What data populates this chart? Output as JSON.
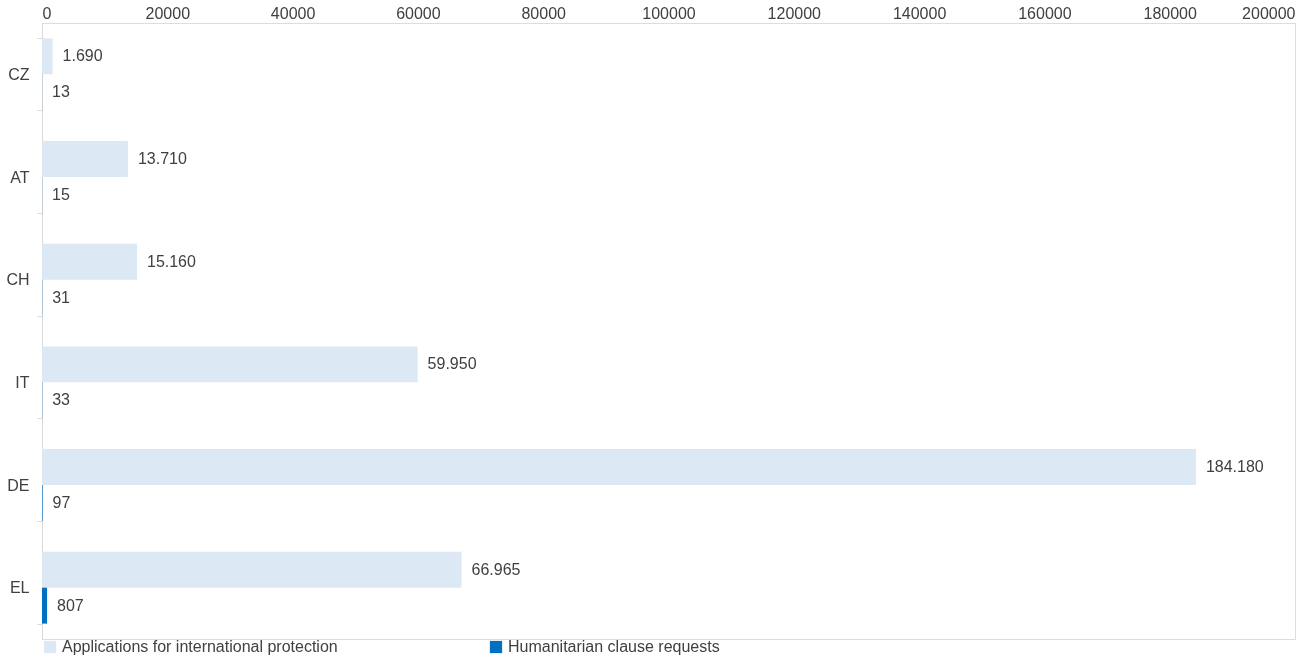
{
  "chart_data": {
    "type": "bar",
    "orientation": "horizontal",
    "categories": [
      "CZ",
      "AT",
      "CH",
      "IT",
      "DE",
      "EL"
    ],
    "series": [
      {
        "name": "Applications for international protection",
        "color": "#dde8f5",
        "values": [
          1690,
          13710,
          15160,
          59950,
          184180,
          66965
        ],
        "value_labels": [
          "1.690",
          "13.710",
          "15.160",
          "59.950",
          "184.180",
          "66.965"
        ]
      },
      {
        "name": "Humanitarian clause requests",
        "color": "#0070c0",
        "values": [
          13,
          15,
          31,
          33,
          97,
          807
        ],
        "value_labels": [
          "13",
          "15",
          "31",
          "33",
          "97",
          "807"
        ]
      }
    ],
    "xlim": [
      0,
      200000
    ],
    "xticks": [
      0,
      20000,
      40000,
      60000,
      80000,
      100000,
      120000,
      140000,
      160000,
      180000,
      200000
    ],
    "grid": false,
    "legend": "bottom"
  }
}
